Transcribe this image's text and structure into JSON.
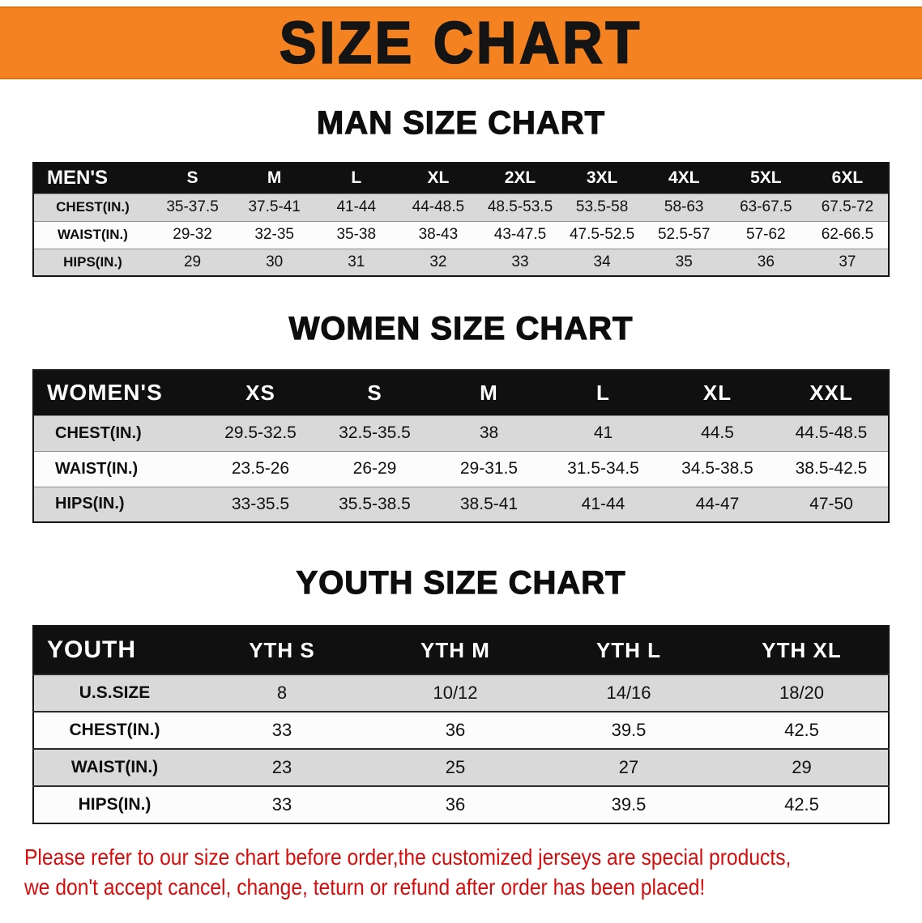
{
  "banner": {
    "title": "SIZE CHART"
  },
  "colors": {
    "banner_bg": "#f48220",
    "table_header_bg": "#101010",
    "row_stripe": "#d9d9d9",
    "disclaimer_red": "#d40d0d"
  },
  "sections": [
    {
      "id": "men",
      "heading": "MAN SIZE CHART",
      "table": {
        "header": [
          "MEN'S",
          "S",
          "M",
          "L",
          "XL",
          "2XL",
          "3XL",
          "4XL",
          "5XL",
          "6XL"
        ],
        "rows": [
          [
            "CHEST(IN.)",
            "35-37.5",
            "37.5-41",
            "41-44",
            "44-48.5",
            "48.5-53.5",
            "53.5-58",
            "58-63",
            "63-67.5",
            "67.5-72"
          ],
          [
            "WAIST(IN.)",
            "29-32",
            "32-35",
            "35-38",
            "38-43",
            "43-47.5",
            "47.5-52.5",
            "52.5-57",
            "57-62",
            "62-66.5"
          ],
          [
            "HIPS(IN.)",
            "29",
            "30",
            "31",
            "32",
            "33",
            "34",
            "35",
            "36",
            "37"
          ]
        ]
      }
    },
    {
      "id": "women",
      "heading": "WOMEN SIZE CHART",
      "table": {
        "header": [
          "WOMEN'S",
          "XS",
          "S",
          "M",
          "L",
          "XL",
          "XXL"
        ],
        "rows": [
          [
            "CHEST(IN.)",
            "29.5-32.5",
            "32.5-35.5",
            "38",
            "41",
            "44.5",
            "44.5-48.5"
          ],
          [
            "WAIST(IN.)",
            "23.5-26",
            "26-29",
            "29-31.5",
            "31.5-34.5",
            "34.5-38.5",
            "38.5-42.5"
          ],
          [
            "HIPS(IN.)",
            "33-35.5",
            "35.5-38.5",
            "38.5-41",
            "41-44",
            "44-47",
            "47-50"
          ]
        ]
      }
    },
    {
      "id": "youth",
      "heading": "YOUTH SIZE CHART",
      "table": {
        "header": [
          "YOUTH",
          "YTH S",
          "YTH M",
          "YTH L",
          "YTH XL"
        ],
        "rows": [
          [
            "U.S.SIZE",
            "8",
            "10/12",
            "14/16",
            "18/20"
          ],
          [
            "CHEST(IN.)",
            "33",
            "36",
            "39.5",
            "42.5"
          ],
          [
            "WAIST(IN.)",
            "23",
            "25",
            "27",
            "29"
          ],
          [
            "HIPS(IN.)",
            "33",
            "36",
            "39.5",
            "42.5"
          ]
        ]
      }
    }
  ],
  "disclaimer": {
    "line1": "Please refer to our size chart before order,the customized jerseys are special products,",
    "line2": "we don't accept cancel, change, teturn or refund after order has been placed!"
  }
}
